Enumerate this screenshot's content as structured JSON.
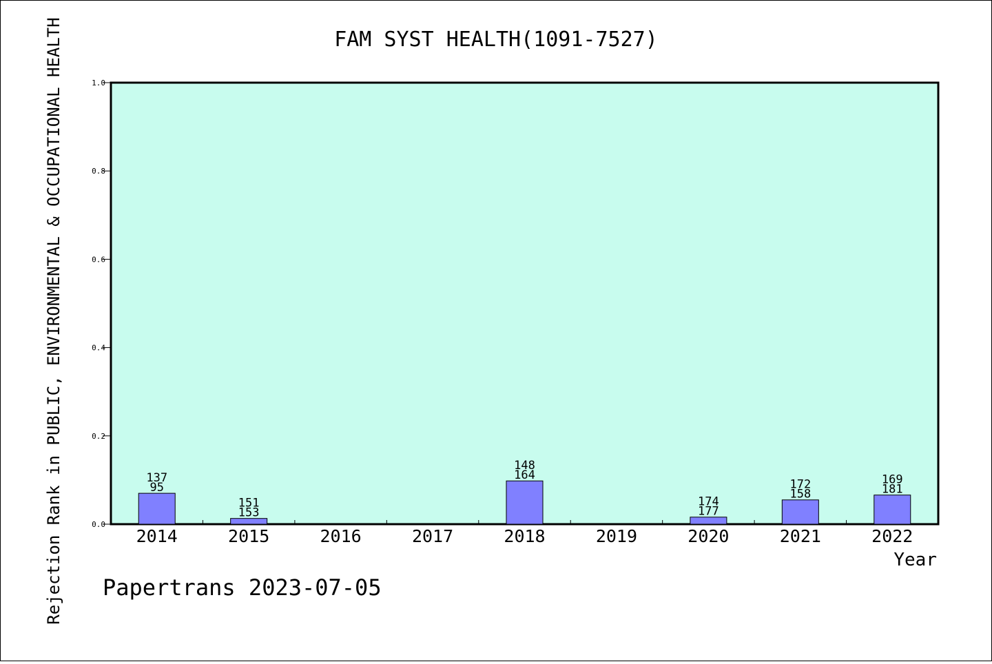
{
  "chart_data": {
    "type": "bar",
    "title": "FAM SYST HEALTH(1091-7527)",
    "xlabel": "Year",
    "ylabel": "Rejection Rank in PUBLIC, ENVIRONMENTAL & OCCUPATIONAL HEALTH",
    "categories": [
      "2014",
      "2015",
      "2016",
      "2017",
      "2018",
      "2019",
      "2020",
      "2021",
      "2022"
    ],
    "values": [
      0.07,
      0.013,
      null,
      null,
      0.098,
      null,
      0.016,
      0.055,
      0.066
    ],
    "labels_top": [
      "137",
      "151",
      "",
      "",
      "148",
      "",
      "174",
      "172",
      "169"
    ],
    "labels_bottom": [
      "95",
      "153",
      "",
      "",
      "164",
      "",
      "177",
      "158",
      "181"
    ],
    "ylim": [
      0,
      1.0
    ],
    "yticks": [
      "0.0",
      "0.2",
      "0.4",
      "0.6",
      "0.8",
      "1.0"
    ],
    "grid": false,
    "colors": {
      "plot_background": "#c8fcee",
      "bar_fill": "#8080ff",
      "bar_stroke": "#000000"
    }
  },
  "footer": {
    "source": "Papertrans 2023-07-05"
  }
}
